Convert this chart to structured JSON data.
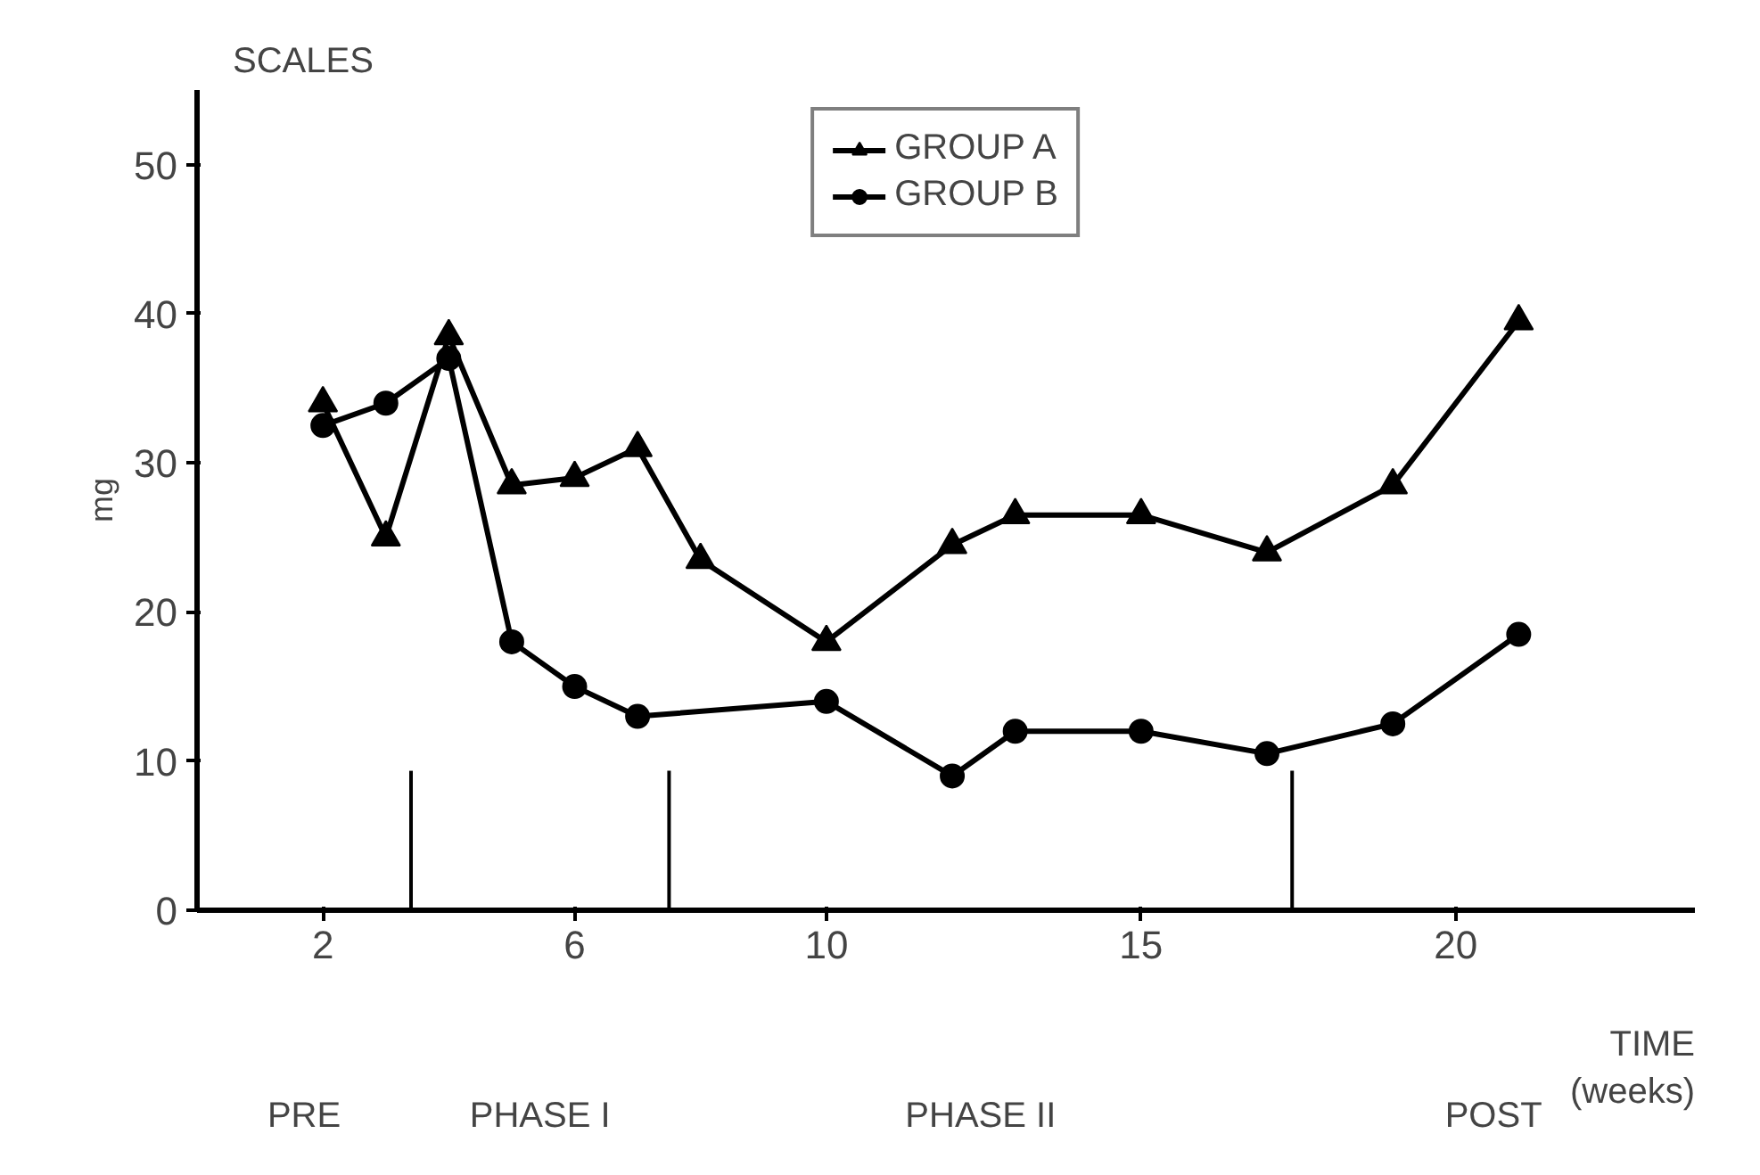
{
  "chart_data": {
    "type": "line",
    "title": "SCALES",
    "ylabel": "mg",
    "xlabel": "TIME\n(weeks)",
    "xlim": [
      0,
      23.8
    ],
    "xticks": [
      2,
      6,
      10,
      15,
      20
    ],
    "ylim": [
      0,
      55
    ],
    "yticks": [
      0,
      10,
      20,
      30,
      40,
      50
    ],
    "grid": false,
    "legend": "top",
    "line_style": "solid",
    "series": [
      {
        "name": "GROUP A",
        "color": "#000000",
        "marker": "triangle",
        "x": [
          2,
          3,
          4,
          5,
          6,
          7,
          8,
          10,
          12,
          13,
          15,
          17,
          19,
          21
        ],
        "values": [
          34,
          25,
          38.5,
          28.5,
          29,
          31,
          23.5,
          18,
          24.5,
          26.5,
          26.5,
          24,
          28.5,
          39.5
        ]
      },
      {
        "name": "GROUP B",
        "color": "#000000",
        "marker": "circle",
        "x": [
          2,
          3,
          4,
          5,
          6,
          7,
          10,
          12,
          13,
          15,
          17,
          19,
          21
        ],
        "values": [
          32.5,
          34,
          37,
          18,
          15,
          13,
          14,
          9,
          12,
          12,
          10.5,
          12.5,
          18.5
        ]
      }
    ],
    "ref_lines": [
      {
        "axis": "x",
        "value": 3.4,
        "label": null
      },
      {
        "axis": "x",
        "value": 7.5,
        "label": null
      },
      {
        "axis": "x",
        "value": 17.4,
        "label": null
      }
    ],
    "annotations": [
      "PRE",
      "PHASE I",
      "PHASE II",
      "POST"
    ]
  }
}
